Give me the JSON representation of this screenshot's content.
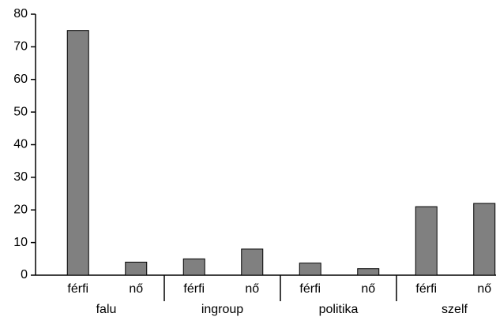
{
  "chart_data": {
    "type": "bar",
    "groups": [
      "falu",
      "ingroup",
      "politika",
      "szelf"
    ],
    "categories": [
      "férfi",
      "nő",
      "férfi",
      "nő",
      "férfi",
      "nő",
      "férfi",
      "nő"
    ],
    "values": [
      75,
      4,
      5,
      8,
      3.7,
      2,
      21,
      22
    ],
    "color": "#808080",
    "ylim": [
      0,
      80
    ],
    "yticks": [
      0,
      10,
      20,
      30,
      40,
      50,
      60,
      70,
      80
    ],
    "grid": false
  }
}
